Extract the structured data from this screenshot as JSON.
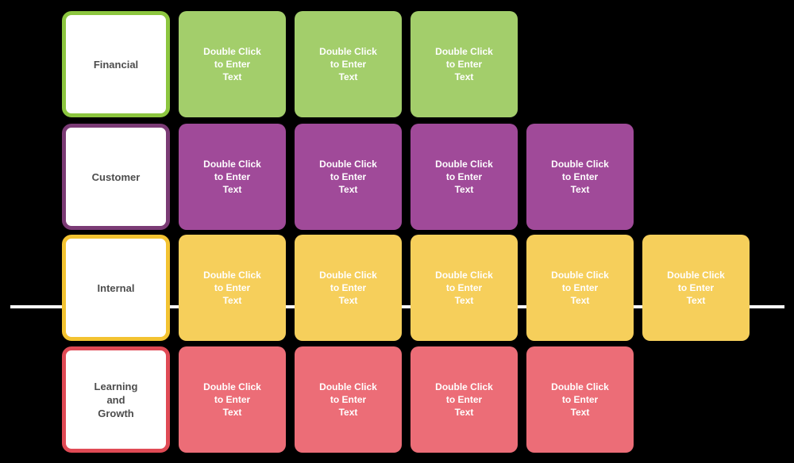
{
  "canvas": {
    "background": "#000000",
    "kind": "balanced-scorecard-template"
  },
  "divider_line": {
    "color": "#FFFFFF"
  },
  "placeholder": {
    "text": "Double Click to Enter Text",
    "lines": [
      "Double Click",
      "to Enter",
      "Text"
    ],
    "text_color": "#FFFFFF"
  },
  "rows": [
    {
      "name": "financial",
      "label": "Financial",
      "label_lines": [
        "Financial"
      ],
      "card_count": 3,
      "fill": "#A3CE6B",
      "border": "#8CC63F"
    },
    {
      "name": "customer",
      "label": "Customer",
      "label_lines": [
        "Customer"
      ],
      "card_count": 4,
      "fill": "#A04A99",
      "border": "#7B3B75"
    },
    {
      "name": "internal",
      "label": "Internal",
      "label_lines": [
        "Internal"
      ],
      "card_count": 5,
      "fill": "#F6CF5B",
      "border": "#F3C331"
    },
    {
      "name": "learning-and-growth",
      "label": "Learning and Growth",
      "label_lines": [
        "Learning",
        "and",
        "Growth"
      ],
      "card_count": 4,
      "fill": "#EC6D77",
      "border": "#E04A55"
    }
  ]
}
